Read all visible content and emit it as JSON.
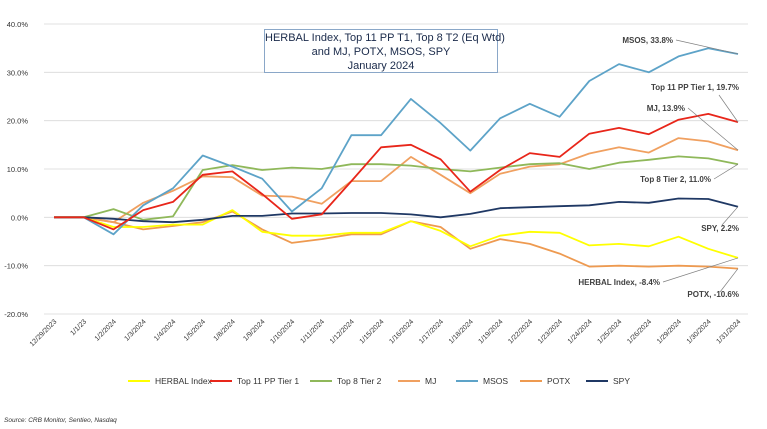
{
  "chart_data": {
    "type": "line",
    "title_lines": [
      "HERBAL Index, Top 11 PP T1, Top 8 T2  (Eq Wtd)",
      "and MJ, POTX, MSOS, SPY",
      "January 2024"
    ],
    "categories": [
      "12/29/2023",
      "1/1/23",
      "1/2/2024",
      "1/3/2024",
      "1/4/2024",
      "1/5/2024",
      "1/8/2024",
      "1/9/2024",
      "1/10/2024",
      "1/11/2024",
      "1/12/2024",
      "1/15/2024",
      "1/16/2024",
      "1/17/2024",
      "1/18/2024",
      "1/19/2024",
      "1/22/2024",
      "1/23/2024",
      "1/24/2024",
      "1/25/2024",
      "1/26/2024",
      "1/29/2024",
      "1/30/2024",
      "1/31/2024"
    ],
    "y_ticks": [
      "40.0%",
      "30.0%",
      "20.0%",
      "10.0%",
      "0.0%",
      "-10.0%",
      "-20.0%"
    ],
    "ylim": [
      -20,
      40
    ],
    "series": [
      {
        "name": "HERBAL Index",
        "color": "#ffff00",
        "values": [
          0,
          0,
          -2.0,
          -2.0,
          -1.5,
          -1.5,
          1.5,
          -3.0,
          -3.8,
          -3.8,
          -3.2,
          -3.2,
          -0.8,
          -2.8,
          -6.0,
          -3.8,
          -3.0,
          -3.2,
          -5.8,
          -5.5,
          -6.0,
          -4.0,
          -6.5,
          -8.4
        ]
      },
      {
        "name": "Top 11 PP Tier 1",
        "color": "#e8261a",
        "values": [
          0,
          0,
          -2.5,
          1.5,
          3.2,
          8.8,
          9.5,
          4.8,
          -0.3,
          0.6,
          7.5,
          14.5,
          15.0,
          12.0,
          5.3,
          9.8,
          13.3,
          12.5,
          17.3,
          18.5,
          17.2,
          20.2,
          21.4,
          19.7
        ]
      },
      {
        "name": "Top 8 Tier 2",
        "color": "#8fb85a",
        "values": [
          0,
          0,
          1.7,
          -0.5,
          0.2,
          9.8,
          10.8,
          9.8,
          10.3,
          10.0,
          11.0,
          11.0,
          10.7,
          10.0,
          9.5,
          10.3,
          11.0,
          11.2,
          10.0,
          11.3,
          11.9,
          12.6,
          12.2,
          11.0
        ]
      },
      {
        "name": "MJ",
        "color": "#f0a060",
        "values": [
          0,
          0,
          -1.0,
          3.0,
          5.5,
          8.5,
          8.3,
          4.5,
          4.3,
          2.8,
          7.5,
          7.5,
          12.5,
          8.8,
          5.0,
          9.0,
          10.5,
          11.0,
          13.2,
          14.5,
          13.4,
          16.4,
          15.7,
          13.9
        ]
      },
      {
        "name": "MSOS",
        "color": "#5da3c8",
        "values": [
          0,
          0,
          -3.5,
          2.5,
          6.0,
          12.8,
          10.5,
          8.0,
          1.2,
          6.0,
          17.0,
          17.0,
          24.5,
          19.5,
          13.8,
          20.5,
          23.5,
          20.8,
          28.2,
          31.7,
          30.0,
          33.3,
          35.0,
          33.8
        ]
      },
      {
        "name": "POTX",
        "color": "#ee9a50",
        "values": [
          0,
          0,
          -1.0,
          -2.5,
          -1.8,
          -1.0,
          1.2,
          -2.5,
          -5.3,
          -4.5,
          -3.5,
          -3.5,
          -0.8,
          -2.0,
          -6.5,
          -4.5,
          -5.5,
          -7.5,
          -10.2,
          -10.0,
          -10.2,
          -10.0,
          -10.2,
          -10.6
        ]
      },
      {
        "name": "SPY",
        "color": "#1f3864",
        "values": [
          0,
          0,
          -0.3,
          -0.8,
          -1.0,
          -0.5,
          0.3,
          0.3,
          0.8,
          0.8,
          0.9,
          0.9,
          0.6,
          0.0,
          0.7,
          1.9,
          2.1,
          2.3,
          2.5,
          3.2,
          3.0,
          3.9,
          3.8,
          2.2
        ]
      }
    ],
    "annotations": [
      {
        "text": "MSOS, 33.8%",
        "series": "MSOS"
      },
      {
        "text": "Top 11 PP Tier 1, 19.7%",
        "series": "Top 11 PP Tier 1"
      },
      {
        "text": "MJ, 13.9%",
        "series": "MJ"
      },
      {
        "text": "Top 8 Tier 2, 11.0%",
        "series": "Top 8 Tier 2"
      },
      {
        "text": "SPY, 2.2%",
        "series": "SPY"
      },
      {
        "text": "HERBAL Index, -8.4%",
        "series": "HERBAL Index"
      },
      {
        "text": "POTX, -10.6%",
        "series": "POTX"
      }
    ],
    "source": "Source: CRB Monitor, Sentieo, Nasdaq"
  }
}
